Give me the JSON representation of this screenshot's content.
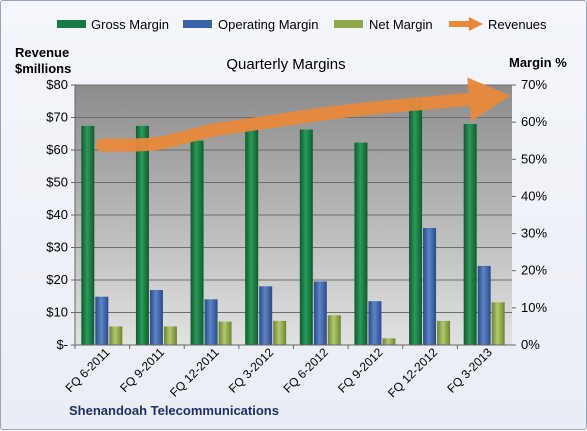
{
  "chart_data": {
    "type": "bar",
    "title": "Quarterly Margins",
    "company": "Shenandoah Telecommunications",
    "y_left_label_line1": "Revenue",
    "y_left_label_line2": "$millions",
    "y_right_label": "Margin %",
    "categories": [
      "FQ 6-2011",
      "FQ 9-2011",
      "FQ 12-2011",
      "FQ 3-2012",
      "FQ 6-2012",
      "FQ 9-2012",
      "FQ 12-2012",
      "FQ 3-2013"
    ],
    "y_left_ticks": [
      "$-",
      "$10",
      "$20",
      "$30",
      "$40",
      "$50",
      "$60",
      "$70",
      "$80"
    ],
    "y_right_ticks": [
      "0%",
      "10%",
      "20%",
      "30%",
      "40%",
      "50%",
      "60%",
      "70%"
    ],
    "ylim_left": [
      0,
      80
    ],
    "ylim_right": [
      0,
      70
    ],
    "grid": true,
    "legend_position": "top",
    "series": [
      {
        "name": "Gross Margin",
        "axis": "right",
        "color": "#1a7a45",
        "values": [
          59,
          59,
          55,
          58,
          58,
          54.5,
          66,
          59.5
        ]
      },
      {
        "name": "Operating Margin",
        "axis": "right",
        "color": "#3b62a8",
        "values": [
          13,
          14.8,
          12.3,
          15.8,
          17.1,
          11.8,
          31.5,
          21.3
        ]
      },
      {
        "name": "Net Margin",
        "axis": "right",
        "color": "#8fa94a",
        "values": [
          5,
          5,
          6.3,
          6.5,
          8,
          1.8,
          6.5,
          11.5
        ]
      },
      {
        "name": "Revenues",
        "axis": "left",
        "color": "#e8893c",
        "type": "line",
        "values": [
          61.5,
          62,
          66,
          68.5,
          71,
          73,
          74.5,
          76
        ]
      }
    ]
  }
}
